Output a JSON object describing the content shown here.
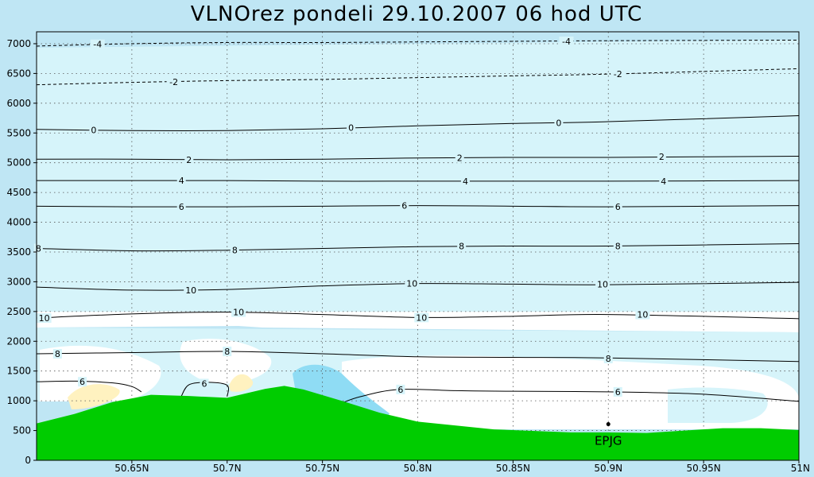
{
  "chart_data": {
    "type": "contour_cross_section",
    "title": "VLNOrez pondeli 29.10.2007 06 hod UTC",
    "xlabel": "",
    "ylabel": "",
    "xlim": [
      50.6,
      51.0
    ],
    "ylim": [
      0,
      7200
    ],
    "x_ticks": [
      {
        "value": 50.65,
        "label": "50.65N"
      },
      {
        "value": 50.7,
        "label": "50.7N"
      },
      {
        "value": 50.75,
        "label": "50.75N"
      },
      {
        "value": 50.8,
        "label": "50.8N"
      },
      {
        "value": 50.85,
        "label": "50.85N"
      },
      {
        "value": 50.9,
        "label": "50.9N"
      },
      {
        "value": 50.95,
        "label": "50.95N"
      },
      {
        "value": 51.0,
        "label": "51N"
      }
    ],
    "y_ticks": [
      {
        "value": 0,
        "label": "0"
      },
      {
        "value": 500,
        "label": "500"
      },
      {
        "value": 1000,
        "label": "1000"
      },
      {
        "value": 1500,
        "label": "1500"
      },
      {
        "value": 2000,
        "label": "2000"
      },
      {
        "value": 2500,
        "label": "2500"
      },
      {
        "value": 3000,
        "label": "3000"
      },
      {
        "value": 3500,
        "label": "3500"
      },
      {
        "value": 4000,
        "label": "4000"
      },
      {
        "value": 4500,
        "label": "4500"
      },
      {
        "value": 5000,
        "label": "5000"
      },
      {
        "value": 5500,
        "label": "5500"
      },
      {
        "value": 6000,
        "label": "6000"
      },
      {
        "value": 6500,
        "label": "6500"
      },
      {
        "value": 7000,
        "label": "7000"
      }
    ],
    "grid": true,
    "colors": {
      "background": "#bfe6f4",
      "plot_band": "#d6f4fa",
      "clear": "#ffffff",
      "terrain": "#00cc00",
      "cloud_blue": "#8fdcf4",
      "warm": "#fff2c0"
    },
    "contours": [
      {
        "label": "-4",
        "dashed": true,
        "points": [
          [
            50.6,
            6960
          ],
          [
            50.65,
            7000
          ],
          [
            50.7,
            7020
          ],
          [
            50.75,
            7020
          ],
          [
            50.8,
            7030
          ],
          [
            50.85,
            7040
          ],
          [
            50.9,
            7050
          ],
          [
            51.0,
            7060
          ]
        ],
        "labels_at": [
          [
            50.632,
            6990
          ],
          [
            50.878,
            7040
          ]
        ]
      },
      {
        "label": "-2",
        "dashed": true,
        "points": [
          [
            50.6,
            6310
          ],
          [
            50.65,
            6350
          ],
          [
            50.7,
            6380
          ],
          [
            50.75,
            6400
          ],
          [
            50.8,
            6430
          ],
          [
            50.85,
            6460
          ],
          [
            50.9,
            6490
          ],
          [
            51.0,
            6580
          ]
        ],
        "labels_at": [
          [
            50.672,
            6360
          ],
          [
            50.905,
            6490
          ]
        ]
      },
      {
        "label": "0",
        "dashed": false,
        "points": [
          [
            50.6,
            5560
          ],
          [
            50.65,
            5540
          ],
          [
            50.7,
            5540
          ],
          [
            50.75,
            5570
          ],
          [
            50.8,
            5620
          ],
          [
            50.85,
            5660
          ],
          [
            50.9,
            5690
          ],
          [
            51.0,
            5790
          ]
        ],
        "labels_at": [
          [
            50.63,
            5550
          ],
          [
            50.765,
            5590
          ],
          [
            50.874,
            5670
          ]
        ]
      },
      {
        "label": "2",
        "dashed": false,
        "points": [
          [
            50.6,
            5060
          ],
          [
            50.65,
            5060
          ],
          [
            50.7,
            5050
          ],
          [
            50.75,
            5060
          ],
          [
            50.8,
            5080
          ],
          [
            50.85,
            5090
          ],
          [
            50.9,
            5090
          ],
          [
            51.0,
            5110
          ]
        ],
        "labels_at": [
          [
            50.68,
            5050
          ],
          [
            50.822,
            5080
          ],
          [
            50.928,
            5100
          ]
        ]
      },
      {
        "label": "4",
        "dashed": false,
        "points": [
          [
            50.6,
            4700
          ],
          [
            50.65,
            4700
          ],
          [
            50.7,
            4700
          ],
          [
            50.75,
            4690
          ],
          [
            50.8,
            4690
          ],
          [
            50.85,
            4690
          ],
          [
            50.9,
            4690
          ],
          [
            51.0,
            4700
          ]
        ],
        "labels_at": [
          [
            50.676,
            4700
          ],
          [
            50.825,
            4690
          ],
          [
            50.929,
            4690
          ]
        ]
      },
      {
        "label": "6",
        "dashed": false,
        "points": [
          [
            50.6,
            4270
          ],
          [
            50.65,
            4260
          ],
          [
            50.7,
            4260
          ],
          [
            50.75,
            4270
          ],
          [
            50.8,
            4280
          ],
          [
            50.85,
            4270
          ],
          [
            50.9,
            4260
          ],
          [
            51.0,
            4280
          ]
        ],
        "labels_at": [
          [
            50.676,
            4260
          ],
          [
            50.793,
            4280
          ],
          [
            50.905,
            4260
          ]
        ]
      },
      {
        "label": "8",
        "dashed": false,
        "points": [
          [
            50.6,
            3560
          ],
          [
            50.65,
            3520
          ],
          [
            50.7,
            3530
          ],
          [
            50.75,
            3560
          ],
          [
            50.8,
            3590
          ],
          [
            50.85,
            3600
          ],
          [
            50.9,
            3600
          ],
          [
            51.0,
            3640
          ]
        ],
        "labels_at": [
          [
            50.601,
            3560
          ],
          [
            50.704,
            3530
          ],
          [
            50.823,
            3600
          ],
          [
            50.905,
            3600
          ]
        ]
      },
      {
        "label": "10",
        "dashed": false,
        "points": [
          [
            50.6,
            2910
          ],
          [
            50.65,
            2860
          ],
          [
            50.7,
            2870
          ],
          [
            50.75,
            2930
          ],
          [
            50.8,
            2970
          ],
          [
            50.85,
            2960
          ],
          [
            50.9,
            2950
          ],
          [
            51.0,
            2990
          ]
        ],
        "labels_at": [
          [
            50.681,
            2860
          ],
          [
            50.797,
            2970
          ],
          [
            50.897,
            2960
          ]
        ]
      },
      {
        "label": "10",
        "dashed": false,
        "points": [
          [
            50.6,
            2390
          ],
          [
            50.65,
            2460
          ],
          [
            50.7,
            2490
          ],
          [
            50.75,
            2450
          ],
          [
            50.8,
            2400
          ],
          [
            50.85,
            2420
          ],
          [
            50.9,
            2450
          ],
          [
            51.0,
            2380
          ]
        ],
        "labels_at": [
          [
            50.604,
            2390
          ],
          [
            50.706,
            2490
          ],
          [
            50.802,
            2400
          ],
          [
            50.918,
            2450
          ]
        ]
      },
      {
        "label": "8",
        "dashed": false,
        "points": [
          [
            50.6,
            1790
          ],
          [
            50.65,
            1810
          ],
          [
            50.7,
            1830
          ],
          [
            50.75,
            1790
          ],
          [
            50.8,
            1740
          ],
          [
            50.85,
            1730
          ],
          [
            50.9,
            1720
          ],
          [
            51.0,
            1660
          ]
        ],
        "labels_at": [
          [
            50.611,
            1790
          ],
          [
            50.7,
            1830
          ],
          [
            50.9,
            1710
          ]
        ]
      },
      {
        "label": "6",
        "dashed": false,
        "points": [
          [
            50.6,
            1320
          ],
          [
            50.62,
            1330
          ],
          [
            50.64,
            1300
          ],
          [
            50.65,
            1240
          ],
          [
            50.655,
            1150
          ]
        ],
        "labels_at": [
          [
            50.624,
            1320
          ]
        ]
      },
      {
        "label": "6",
        "dashed": false,
        "points": [
          [
            50.676,
            1080
          ],
          [
            50.68,
            1270
          ],
          [
            50.69,
            1310
          ],
          [
            50.7,
            1260
          ],
          [
            50.7,
            1070
          ]
        ],
        "labels_at": [
          [
            50.688,
            1290
          ]
        ]
      },
      {
        "label": "6",
        "dashed": false,
        "points": [
          [
            50.76,
            960
          ],
          [
            50.77,
            1070
          ],
          [
            50.79,
            1190
          ],
          [
            50.82,
            1170
          ],
          [
            50.85,
            1160
          ],
          [
            50.9,
            1150
          ],
          [
            50.95,
            1110
          ],
          [
            51.0,
            990
          ]
        ],
        "labels_at": [
          [
            50.791,
            1190
          ],
          [
            50.905,
            1150
          ]
        ]
      }
    ],
    "terrain_profile": [
      [
        50.6,
        620
      ],
      [
        50.62,
        780
      ],
      [
        50.64,
        980
      ],
      [
        50.66,
        1100
      ],
      [
        50.68,
        1080
      ],
      [
        50.7,
        1050
      ],
      [
        50.72,
        1200
      ],
      [
        50.73,
        1250
      ],
      [
        50.74,
        1190
      ],
      [
        50.76,
        1000
      ],
      [
        50.78,
        800
      ],
      [
        50.8,
        650
      ],
      [
        50.84,
        520
      ],
      [
        50.88,
        470
      ],
      [
        50.9,
        470
      ],
      [
        50.92,
        460
      ],
      [
        50.96,
        540
      ],
      [
        50.98,
        540
      ],
      [
        51.0,
        510
      ]
    ],
    "stations": [
      {
        "name": "EPJG",
        "x": 50.9,
        "y": 380
      }
    ]
  }
}
